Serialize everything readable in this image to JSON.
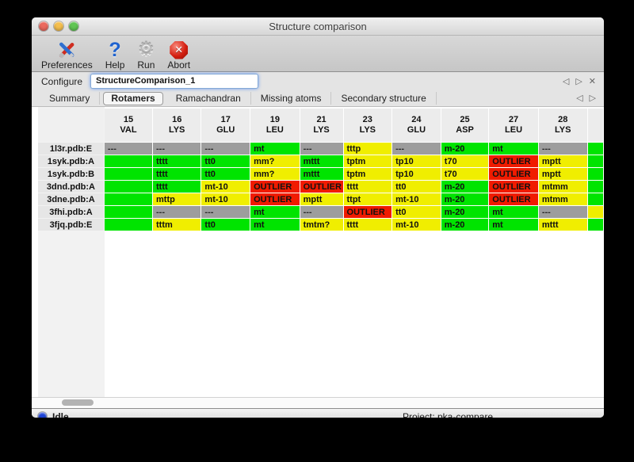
{
  "window": {
    "title": "Structure comparison"
  },
  "toolbar": {
    "items": [
      {
        "label": "Preferences",
        "icon": "tools-icon"
      },
      {
        "label": "Help",
        "icon": "question-mark-icon"
      },
      {
        "label": "Run",
        "icon": "gear-icon"
      },
      {
        "label": "Abort",
        "icon": "abort-octagon-icon"
      }
    ]
  },
  "icons": {
    "question_glyph": "?",
    "gear_glyph": "⚙",
    "abort_glyph": "✕",
    "nav_prev_glyph": "◁",
    "nav_next_glyph": "▷",
    "close_glyph": "✕"
  },
  "configure": {
    "label": "Configure",
    "value": "StructureComparison_1"
  },
  "tabs": {
    "items": [
      {
        "label": "Summary",
        "selected": false
      },
      {
        "label": "Rotamers",
        "selected": true
      },
      {
        "label": "Ramachandran",
        "selected": false
      },
      {
        "label": "Missing atoms",
        "selected": false
      },
      {
        "label": "Secondary structure",
        "selected": false
      }
    ]
  },
  "table": {
    "columns": [
      {
        "num": "15",
        "res": "VAL"
      },
      {
        "num": "16",
        "res": "LYS"
      },
      {
        "num": "17",
        "res": "GLU"
      },
      {
        "num": "19",
        "res": "LEU"
      },
      {
        "num": "21",
        "res": "LYS"
      },
      {
        "num": "23",
        "res": "LYS"
      },
      {
        "num": "24",
        "res": "GLU"
      },
      {
        "num": "25",
        "res": "ASP"
      },
      {
        "num": "27",
        "res": "LEU"
      },
      {
        "num": "28",
        "res": "LYS"
      },
      {
        "num": "",
        "res": ""
      }
    ],
    "rows": [
      {
        "label": "1l3r.pdb:E",
        "cells": [
          {
            "text": "---",
            "status": "missing"
          },
          {
            "text": "---",
            "status": "missing"
          },
          {
            "text": "---",
            "status": "missing"
          },
          {
            "text": "mt",
            "status": "ok"
          },
          {
            "text": "---",
            "status": "missing"
          },
          {
            "text": "tttp",
            "status": "warn"
          },
          {
            "text": "---",
            "status": "missing"
          },
          {
            "text": "m-20",
            "status": "ok"
          },
          {
            "text": "mt",
            "status": "ok"
          },
          {
            "text": "---",
            "status": "missing"
          },
          {
            "text": "",
            "status": "ok"
          }
        ]
      },
      {
        "label": "1syk.pdb:A",
        "cells": [
          {
            "text": "",
            "status": "ok"
          },
          {
            "text": "tttt",
            "status": "ok"
          },
          {
            "text": "tt0",
            "status": "ok"
          },
          {
            "text": "mm?",
            "status": "warn"
          },
          {
            "text": "mttt",
            "status": "ok"
          },
          {
            "text": "tptm",
            "status": "warn"
          },
          {
            "text": "tp10",
            "status": "warn"
          },
          {
            "text": "t70",
            "status": "warn"
          },
          {
            "text": "OUTLIER",
            "status": "outlier"
          },
          {
            "text": "mptt",
            "status": "warn"
          },
          {
            "text": "",
            "status": "ok"
          }
        ]
      },
      {
        "label": "1syk.pdb:B",
        "cells": [
          {
            "text": "",
            "status": "ok"
          },
          {
            "text": "tttt",
            "status": "ok"
          },
          {
            "text": "tt0",
            "status": "ok"
          },
          {
            "text": "mm?",
            "status": "warn"
          },
          {
            "text": "mttt",
            "status": "ok"
          },
          {
            "text": "tptm",
            "status": "warn"
          },
          {
            "text": "tp10",
            "status": "warn"
          },
          {
            "text": "t70",
            "status": "warn"
          },
          {
            "text": "OUTLIER",
            "status": "outlier"
          },
          {
            "text": "mptt",
            "status": "warn"
          },
          {
            "text": "",
            "status": "ok"
          }
        ]
      },
      {
        "label": "3dnd.pdb:A",
        "cells": [
          {
            "text": "",
            "status": "ok"
          },
          {
            "text": "tttt",
            "status": "ok"
          },
          {
            "text": "mt-10",
            "status": "warn"
          },
          {
            "text": "OUTLIER",
            "status": "outlier"
          },
          {
            "text": "OUTLIER",
            "status": "outlier"
          },
          {
            "text": "tttt",
            "status": "warn"
          },
          {
            "text": "tt0",
            "status": "warn"
          },
          {
            "text": "m-20",
            "status": "ok"
          },
          {
            "text": "OUTLIER",
            "status": "outlier"
          },
          {
            "text": "mtmm",
            "status": "warn"
          },
          {
            "text": "",
            "status": "ok"
          }
        ]
      },
      {
        "label": "3dne.pdb:A",
        "cells": [
          {
            "text": "",
            "status": "ok"
          },
          {
            "text": "mttp",
            "status": "warn"
          },
          {
            "text": "mt-10",
            "status": "warn"
          },
          {
            "text": "OUTLIER",
            "status": "outlier"
          },
          {
            "text": "mptt",
            "status": "warn"
          },
          {
            "text": "ttpt",
            "status": "warn"
          },
          {
            "text": "mt-10",
            "status": "warn"
          },
          {
            "text": "m-20",
            "status": "ok"
          },
          {
            "text": "OUTLIER",
            "status": "outlier"
          },
          {
            "text": "mtmm",
            "status": "warn"
          },
          {
            "text": "",
            "status": "ok"
          }
        ]
      },
      {
        "label": "3fhi.pdb:A",
        "cells": [
          {
            "text": "",
            "status": "ok"
          },
          {
            "text": "---",
            "status": "missing"
          },
          {
            "text": "---",
            "status": "missing"
          },
          {
            "text": "mt",
            "status": "ok"
          },
          {
            "text": "---",
            "status": "missing"
          },
          {
            "text": "OUTLIER",
            "status": "outlier"
          },
          {
            "text": "tt0",
            "status": "warn"
          },
          {
            "text": "m-20",
            "status": "ok"
          },
          {
            "text": "mt",
            "status": "ok"
          },
          {
            "text": "---",
            "status": "missing"
          },
          {
            "text": "",
            "status": "warn"
          }
        ]
      },
      {
        "label": "3fjq.pdb:E",
        "cells": [
          {
            "text": "",
            "status": "ok"
          },
          {
            "text": "tttm",
            "status": "warn"
          },
          {
            "text": "tt0",
            "status": "ok"
          },
          {
            "text": "mt",
            "status": "ok"
          },
          {
            "text": "tmtm?",
            "status": "warn"
          },
          {
            "text": "tttt",
            "status": "warn"
          },
          {
            "text": "mt-10",
            "status": "warn"
          },
          {
            "text": "m-20",
            "status": "ok"
          },
          {
            "text": "mt",
            "status": "ok"
          },
          {
            "text": "mttt",
            "status": "warn"
          },
          {
            "text": "",
            "status": "ok"
          }
        ]
      }
    ]
  },
  "statusbar": {
    "state": "Idle",
    "project": "Project: pka-compare"
  },
  "theme": {
    "status_colors": {
      "ok": "#00e400",
      "warn": "#f0ee00",
      "outlier": "#f01b00",
      "missing": "#9d9d9d"
    },
    "traffic_red": "#ec6a5e",
    "traffic_yellow": "#f5bf4f",
    "traffic_green": "#61c654",
    "led_blue": "#1d43d8",
    "focus_ring": "#6f9ff0"
  }
}
